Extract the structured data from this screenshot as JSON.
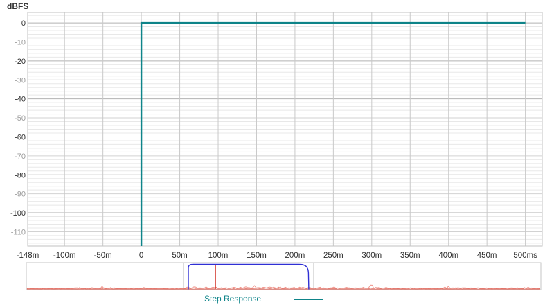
{
  "legend": {
    "label": "Step Response"
  },
  "chart_data": {
    "type": "line",
    "title": "",
    "xlabel": "",
    "ylabel": "dBFS",
    "x_unit": "ms",
    "xlim": [
      -148,
      522
    ],
    "ylim": [
      -117.5,
      5.5
    ],
    "grid": {
      "minor_step_db": 2,
      "mid_step_db": 10,
      "major_step_db": 20,
      "x_step_ms": 50
    },
    "x_ticks": [
      {
        "v": -148,
        "label": "-148m",
        "grid": false
      },
      {
        "v": -100,
        "label": "-100m",
        "grid": true
      },
      {
        "v": -50,
        "label": "-50m",
        "grid": true
      },
      {
        "v": 0,
        "label": "0",
        "grid": true
      },
      {
        "v": 50,
        "label": "50m",
        "grid": true
      },
      {
        "v": 100,
        "label": "100m",
        "grid": true
      },
      {
        "v": 150,
        "label": "150m",
        "grid": true
      },
      {
        "v": 200,
        "label": "200m",
        "grid": true
      },
      {
        "v": 250,
        "label": "250m",
        "grid": true
      },
      {
        "v": 300,
        "label": "300m",
        "grid": true
      },
      {
        "v": 350,
        "label": "350m",
        "grid": true
      },
      {
        "v": 400,
        "label": "400m",
        "grid": true
      },
      {
        "v": 450,
        "label": "450m",
        "grid": true
      },
      {
        "v": 500,
        "label": "500ms",
        "grid": true
      }
    ],
    "y_ticks": [
      {
        "v": 0,
        "label": "0",
        "major": true
      },
      {
        "v": -10,
        "label": "-10",
        "major": false
      },
      {
        "v": -20,
        "label": "-20",
        "major": true
      },
      {
        "v": -30,
        "label": "-30",
        "major": false
      },
      {
        "v": -40,
        "label": "-40",
        "major": true
      },
      {
        "v": -50,
        "label": "-50",
        "major": false
      },
      {
        "v": -60,
        "label": "-60",
        "major": true
      },
      {
        "v": -70,
        "label": "-70",
        "major": false
      },
      {
        "v": -80,
        "label": "-80",
        "major": true
      },
      {
        "v": -90,
        "label": "-90",
        "major": false
      },
      {
        "v": -100,
        "label": "-100",
        "major": true
      },
      {
        "v": -110,
        "label": "-110",
        "major": false
      }
    ],
    "series": [
      {
        "name": "Step Response",
        "color": "#0e8489",
        "points": [
          [
            0,
            -117.5
          ],
          [
            0,
            0
          ],
          [
            500,
            0
          ]
        ]
      }
    ],
    "overview": {
      "region_start_frac": 0.3055,
      "region_end_frac": 0.5586,
      "envelope_start_frac": 0.315,
      "envelope_end_frac": 0.549,
      "impulse_frac": 0.3674,
      "envelope_color": "#3030d4",
      "impulse_color": "#d2352a",
      "noise_color": "#f0978e",
      "noise_color_dark": "#e06a5f",
      "noise_seed": 42
    }
  }
}
